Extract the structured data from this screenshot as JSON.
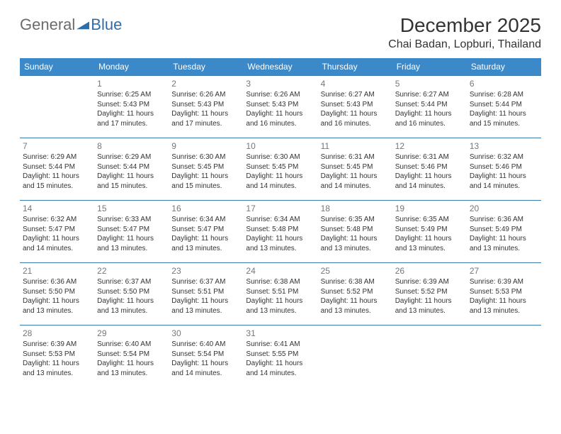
{
  "brand": {
    "part1": "General",
    "part2": "Blue"
  },
  "title": "December 2025",
  "location": "Chai Badan, Lopburi, Thailand",
  "colors": {
    "header_bg": "#3b89c9",
    "header_text": "#ffffff",
    "row_border": "#3b7aad",
    "brand_gray": "#6b6b6b",
    "brand_blue": "#2f6da8"
  },
  "day_headers": [
    "Sunday",
    "Monday",
    "Tuesday",
    "Wednesday",
    "Thursday",
    "Friday",
    "Saturday"
  ],
  "weeks": [
    [
      {
        "n": "",
        "sr": "",
        "ss": "",
        "dl": ""
      },
      {
        "n": "1",
        "sr": "6:25 AM",
        "ss": "5:43 PM",
        "dl": "11 hours and 17 minutes."
      },
      {
        "n": "2",
        "sr": "6:26 AM",
        "ss": "5:43 PM",
        "dl": "11 hours and 17 minutes."
      },
      {
        "n": "3",
        "sr": "6:26 AM",
        "ss": "5:43 PM",
        "dl": "11 hours and 16 minutes."
      },
      {
        "n": "4",
        "sr": "6:27 AM",
        "ss": "5:43 PM",
        "dl": "11 hours and 16 minutes."
      },
      {
        "n": "5",
        "sr": "6:27 AM",
        "ss": "5:44 PM",
        "dl": "11 hours and 16 minutes."
      },
      {
        "n": "6",
        "sr": "6:28 AM",
        "ss": "5:44 PM",
        "dl": "11 hours and 15 minutes."
      }
    ],
    [
      {
        "n": "7",
        "sr": "6:29 AM",
        "ss": "5:44 PM",
        "dl": "11 hours and 15 minutes."
      },
      {
        "n": "8",
        "sr": "6:29 AM",
        "ss": "5:44 PM",
        "dl": "11 hours and 15 minutes."
      },
      {
        "n": "9",
        "sr": "6:30 AM",
        "ss": "5:45 PM",
        "dl": "11 hours and 15 minutes."
      },
      {
        "n": "10",
        "sr": "6:30 AM",
        "ss": "5:45 PM",
        "dl": "11 hours and 14 minutes."
      },
      {
        "n": "11",
        "sr": "6:31 AM",
        "ss": "5:45 PM",
        "dl": "11 hours and 14 minutes."
      },
      {
        "n": "12",
        "sr": "6:31 AM",
        "ss": "5:46 PM",
        "dl": "11 hours and 14 minutes."
      },
      {
        "n": "13",
        "sr": "6:32 AM",
        "ss": "5:46 PM",
        "dl": "11 hours and 14 minutes."
      }
    ],
    [
      {
        "n": "14",
        "sr": "6:32 AM",
        "ss": "5:47 PM",
        "dl": "11 hours and 14 minutes."
      },
      {
        "n": "15",
        "sr": "6:33 AM",
        "ss": "5:47 PM",
        "dl": "11 hours and 13 minutes."
      },
      {
        "n": "16",
        "sr": "6:34 AM",
        "ss": "5:47 PM",
        "dl": "11 hours and 13 minutes."
      },
      {
        "n": "17",
        "sr": "6:34 AM",
        "ss": "5:48 PM",
        "dl": "11 hours and 13 minutes."
      },
      {
        "n": "18",
        "sr": "6:35 AM",
        "ss": "5:48 PM",
        "dl": "11 hours and 13 minutes."
      },
      {
        "n": "19",
        "sr": "6:35 AM",
        "ss": "5:49 PM",
        "dl": "11 hours and 13 minutes."
      },
      {
        "n": "20",
        "sr": "6:36 AM",
        "ss": "5:49 PM",
        "dl": "11 hours and 13 minutes."
      }
    ],
    [
      {
        "n": "21",
        "sr": "6:36 AM",
        "ss": "5:50 PM",
        "dl": "11 hours and 13 minutes."
      },
      {
        "n": "22",
        "sr": "6:37 AM",
        "ss": "5:50 PM",
        "dl": "11 hours and 13 minutes."
      },
      {
        "n": "23",
        "sr": "6:37 AM",
        "ss": "5:51 PM",
        "dl": "11 hours and 13 minutes."
      },
      {
        "n": "24",
        "sr": "6:38 AM",
        "ss": "5:51 PM",
        "dl": "11 hours and 13 minutes."
      },
      {
        "n": "25",
        "sr": "6:38 AM",
        "ss": "5:52 PM",
        "dl": "11 hours and 13 minutes."
      },
      {
        "n": "26",
        "sr": "6:39 AM",
        "ss": "5:52 PM",
        "dl": "11 hours and 13 minutes."
      },
      {
        "n": "27",
        "sr": "6:39 AM",
        "ss": "5:53 PM",
        "dl": "11 hours and 13 minutes."
      }
    ],
    [
      {
        "n": "28",
        "sr": "6:39 AM",
        "ss": "5:53 PM",
        "dl": "11 hours and 13 minutes."
      },
      {
        "n": "29",
        "sr": "6:40 AM",
        "ss": "5:54 PM",
        "dl": "11 hours and 13 minutes."
      },
      {
        "n": "30",
        "sr": "6:40 AM",
        "ss": "5:54 PM",
        "dl": "11 hours and 14 minutes."
      },
      {
        "n": "31",
        "sr": "6:41 AM",
        "ss": "5:55 PM",
        "dl": "11 hours and 14 minutes."
      },
      {
        "n": "",
        "sr": "",
        "ss": "",
        "dl": ""
      },
      {
        "n": "",
        "sr": "",
        "ss": "",
        "dl": ""
      },
      {
        "n": "",
        "sr": "",
        "ss": "",
        "dl": ""
      }
    ]
  ],
  "labels": {
    "sunrise": "Sunrise: ",
    "sunset": "Sunset: ",
    "daylight": "Daylight: "
  }
}
